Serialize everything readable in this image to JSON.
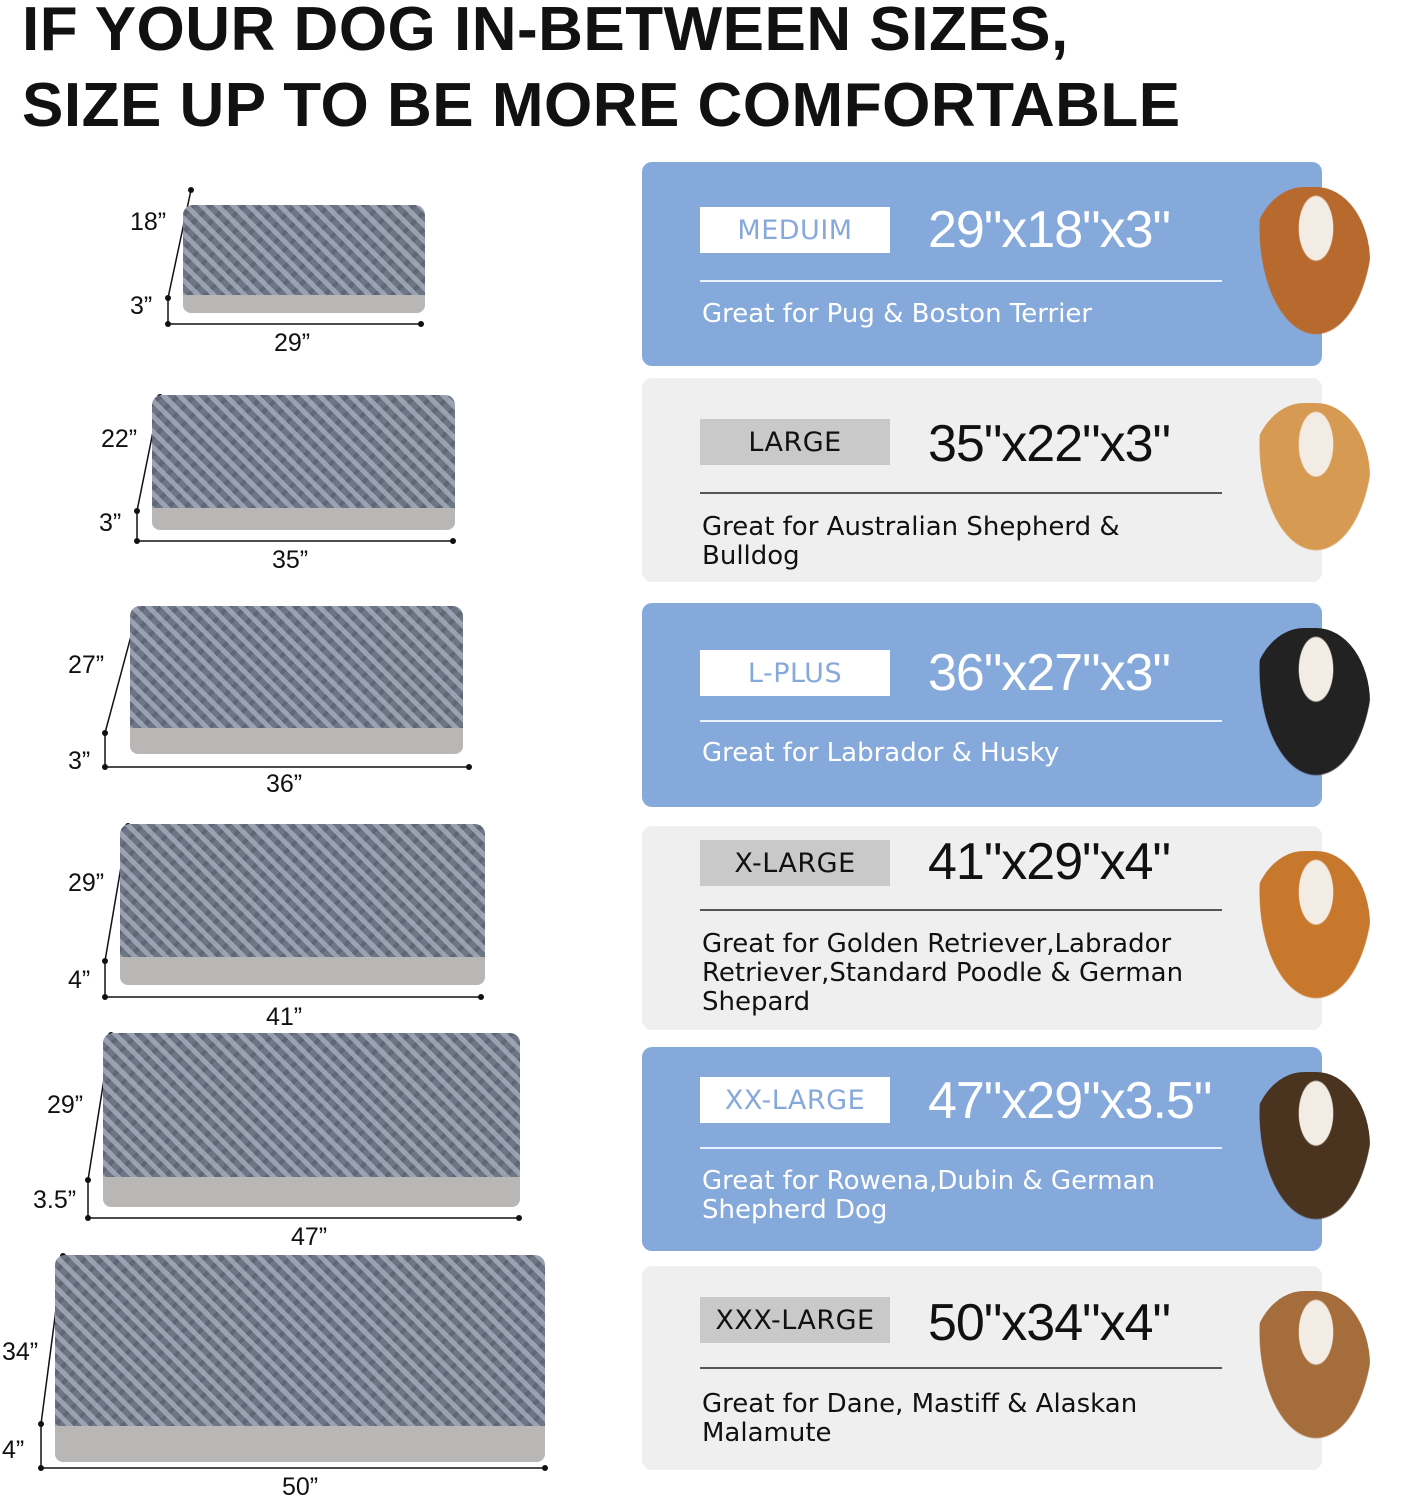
{
  "title": {
    "line1": "IF YOUR DOG IN-BETWEEN SIZES,",
    "line2": "SIZE UP TO BE MORE COMFORTABLE"
  },
  "beds": [
    {
      "depth": "18”",
      "height": "3”",
      "width": "29”"
    },
    {
      "depth": "22”",
      "height": "3”",
      "width": "35”"
    },
    {
      "depth": "27”",
      "height": "3”",
      "width": "36”"
    },
    {
      "depth": "29”",
      "height": "4”",
      "width": "41”"
    },
    {
      "depth": "29”",
      "height": "3.5”",
      "width": "47”"
    },
    {
      "depth": "34”",
      "height": "4”",
      "width": "50”"
    }
  ],
  "cards": [
    {
      "label": "MEDUIM",
      "dims": "29\"x18\"x3\"",
      "desc": "Great for Pug & Boston Terrier",
      "style": "blue",
      "dog": "bulldog"
    },
    {
      "label": "LARGE",
      "dims": "35\"x22\"x3\"",
      "desc": "Great for Australian Shepherd & Bulldog",
      "style": "gray",
      "dog": "shiba-inu"
    },
    {
      "label": "L-PLUS",
      "dims": "36\"x27\"x3\"",
      "desc": "Great for Labrador & Husky",
      "style": "blue",
      "dog": "border-collie"
    },
    {
      "label": "X-LARGE",
      "dims": "41\"x29\"x4\"",
      "desc": "Great for Golden Retriever,Labrador Retriever,Standard Poodle & German Shepard",
      "style": "gray",
      "dog": "golden-retriever"
    },
    {
      "label": "XX-LARGE",
      "dims": "47\"x29\"x3.5\"",
      "desc": "Great for Rowena,Dubin & German Shepherd Dog",
      "style": "blue",
      "dog": "german-shepherd"
    },
    {
      "label": "XXX-LARGE",
      "dims": "50\"x34\"x4\"",
      "desc": "Great for Dane, Mastiff & Alaskan Malamute",
      "style": "gray",
      "dog": "mastiff"
    }
  ],
  "colors": {
    "card_blue": "#86a9db",
    "card_gray": "#efefef",
    "badge_gray": "#c9c9c9"
  }
}
